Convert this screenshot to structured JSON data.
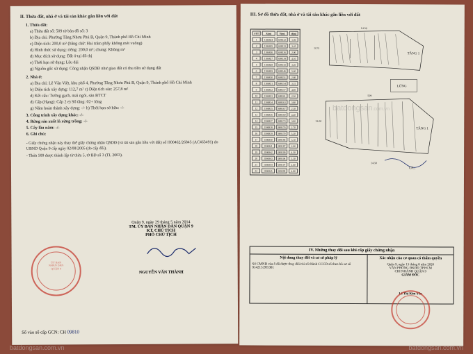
{
  "left": {
    "title_II": "II. Thửa đất, nhà ở và tài sản khác gắn liền với đất",
    "sec1": {
      "heading": "1. Thửa đất:",
      "a": "a) Thửa đất số: 509        tờ bản đồ số:    3",
      "b": "b) Địa chỉ: Phường Tăng Nhơn Phú B, Quận 9, Thành phố Hồ Chí Minh",
      "c": "c) Diện tích: 200,0 m² (bằng chữ: Hai trăm phẩy không mét vuông)",
      "d": "d) Hình thức sử dụng: riêng: 200,0   m²; chung:  Không   m²",
      "e": "đ) Mục đích sử dụng:  Đất ở tại đô thị",
      "f": "e) Thời hạn sử dụng:  Lâu dài",
      "g": "g) Nguồn gốc sử dụng:  Công nhận QSDĐ như giao đất có thu tiền sử dụng đất"
    },
    "sec2": {
      "heading": "2. Nhà ở:",
      "a": "a) Địa chỉ:        Lê Văn Việt, khu phố 4, Phường Tăng Nhơn Phú B, Quận 9, Thành phố Hồ Chí Minh",
      "b": "b) Diện tích xây dựng:       112,7  m²        c) Diện tích sàn:      257,8  m²",
      "d": "d) Kết cấu: Tường gạch, mái ngói, sàn BTCT",
      "e": "đ) Cấp (Hạng): Cấp 2                  e) Số tầng:   02+ lửng",
      "g": "g) Năm hoàn thành xây dựng: -/-         h) Thời hạn sở hữu: -/-"
    },
    "sec3": "3. Công trình xây dựng khác: -/-",
    "sec4": "4. Rừng sản xuất là rừng trồng: -/-",
    "sec5": "5. Cây lâu năm: -/-",
    "sec6": "6. Ghi chú:",
    "note1": "- Giấy chứng nhận này thay thế giấy chứng nhận QSDĐ (và tài sản gắn liền với đất) số H00462/26845 (AC463491) do UBND Quận 9 cấp ngày 02/08/2005 (do cấp đổi).",
    "note2": "- Thửa 509 được thành lập từ thửa 5, tờ BĐ số 3 (TL 2003).",
    "sig_date": "Quận 9, ngày 29 tháng 5 năm 2014",
    "sig_org1": "TM. ỦY BAN NHÂN DÂN QUẬN 9",
    "sig_org2": "KT. CHỦ TỊCH",
    "sig_org3": "PHÓ CHỦ TỊCH",
    "sig_name": "NGUYỄN VĂN THÀNH",
    "gcn": "Số vào sổ cấp GCN: CH",
    "gcn_num": "09810"
  },
  "right": {
    "title_III": "III. Sơ đồ thửa đất, nhà ở và tài sản khác gắn liền với đất",
    "coord_headers": [
      "STT",
      "X(m)",
      "Y(m)",
      "d(m)"
    ],
    "coord_rows": [
      [
        "1",
        "1186824",
        "608132",
        "1.00"
      ],
      [
        "2",
        "1186825",
        "608133",
        "3.45"
      ],
      [
        "3",
        "1186826",
        "608136",
        "2.90"
      ],
      [
        "4",
        "1186827",
        "608139",
        "4.10"
      ],
      [
        "5",
        "1186828",
        "608143",
        "3.20"
      ],
      [
        "6",
        "1186829",
        "608146",
        "5.60"
      ],
      [
        "7",
        "1186830",
        "608151",
        "2.80"
      ],
      [
        "8",
        "1186831",
        "608154",
        "3.15"
      ],
      [
        "9",
        "1186832",
        "608157",
        "4.00"
      ],
      [
        "10",
        "1186833",
        "608161",
        "2.50"
      ],
      [
        "11",
        "1186834",
        "608163",
        "3.80"
      ],
      [
        "12",
        "1186835",
        "608167",
        "2.10"
      ],
      [
        "13",
        "1186836",
        "608169",
        "4.40"
      ],
      [
        "14",
        "1186837",
        "608173",
        "3.00"
      ],
      [
        "15",
        "1186838",
        "608176",
        "2.70"
      ],
      [
        "16",
        "1186839",
        "608179",
        "5.20"
      ],
      [
        "17",
        "1186840",
        "608184",
        "3.10"
      ],
      [
        "18",
        "1186841",
        "608187",
        "2.90"
      ],
      [
        "19",
        "1186842",
        "608190",
        "4.50"
      ],
      [
        "20",
        "1186843",
        "608194",
        "3.30"
      ],
      [
        "21",
        "1186844",
        "608197",
        "2.60"
      ],
      [
        "22",
        "1186845",
        "608200",
        "4.80"
      ]
    ],
    "tang1": "TẦNG 1",
    "lung": "LỬNG",
    "box4_title": "IV. Những thay đổi sau khi cấp giấy chứng nhận",
    "box4_col1": "Nội dung thay đổi và cơ sở pháp lý",
    "box4_col2": "Xác nhận của cơ quan có thẩm quyền",
    "box4_left": "Số CMND của ô                    đã được thay đổi/cải số thành CCCD số                     theo hồ sơ số 914213.ĐT.001",
    "box4_r1": "Quận 9, ngày 13 tháng 8 năm 2020",
    "box4_r2": "VĂN PHÒNG ĐKĐĐ TP.HCM",
    "box4_r3": "CHI NHÁNH QUẬN 9",
    "box4_r4": "GIÁM ĐỐC",
    "box4_name": "Lê Thị Kim Yến"
  },
  "watermark": "batdongsan",
  "watermark_ext": ".com.vn"
}
